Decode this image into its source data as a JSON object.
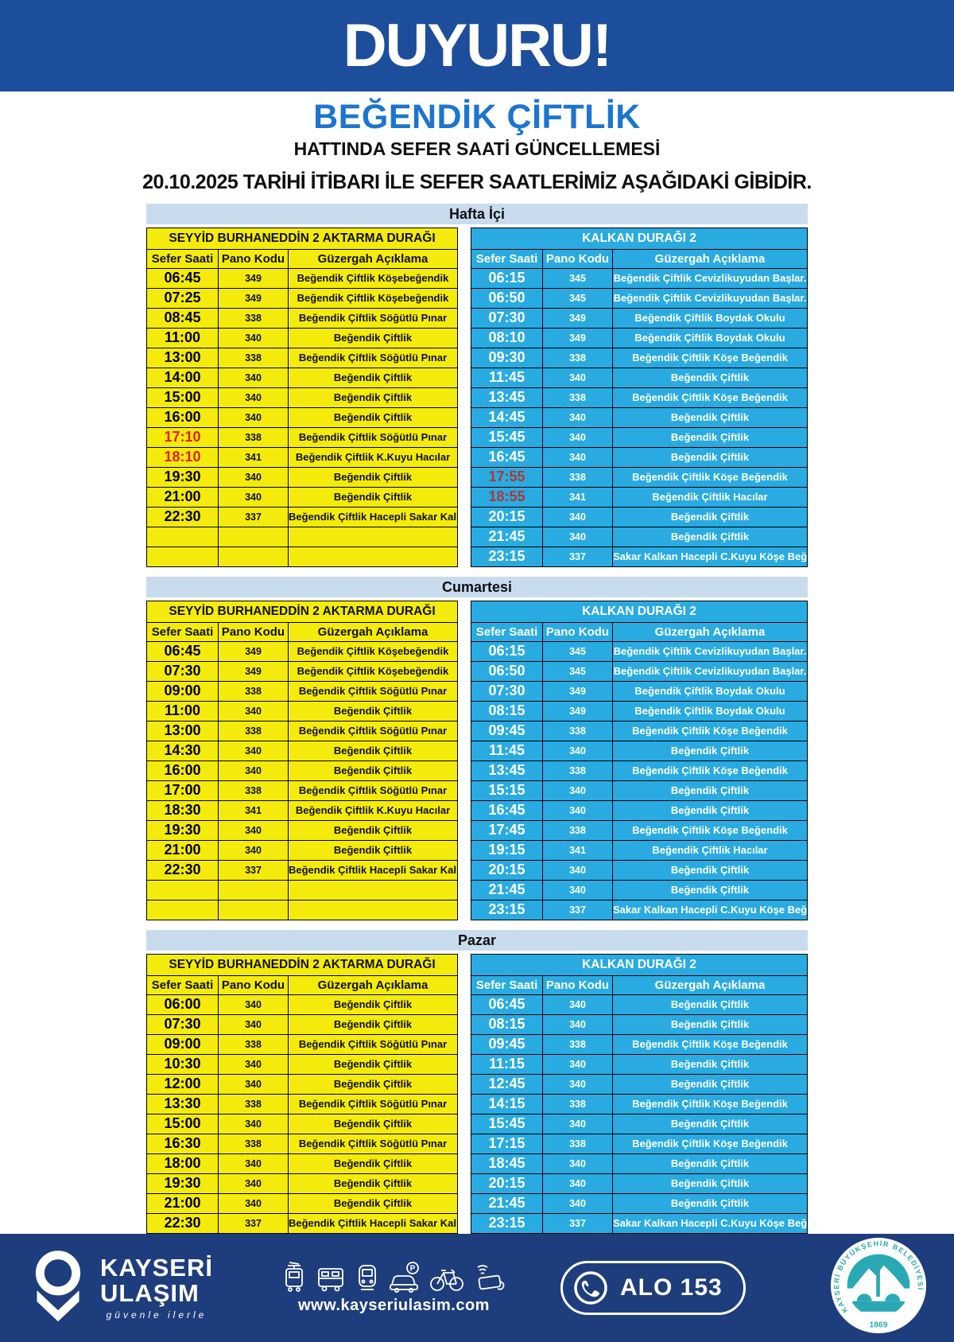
{
  "header": {
    "banner": "DUYURU!",
    "line_name": "BEĞENDİK ÇİFTLİK",
    "subtitle": "HATTINDA SEFER SAATİ GÜNCELLEMESİ",
    "date_line": "20.10.2025 TARİHİ İTİBARI İLE SEFER SAATLERİMİZ AŞAĞIDAKİ GİBİDİR."
  },
  "stops": {
    "left": "SEYYİD BURHANEDDİN 2 AKTARMA DURAĞI",
    "right": "KALKAN DURAĞI 2"
  },
  "columns": [
    "Sefer Saati",
    "Pano Kodu",
    "Güzergah Açıklama"
  ],
  "colors": {
    "banner_blue": "#1d4e9c",
    "line_name_blue": "#1c75cf",
    "day_band": "#c9dcee",
    "table_yellow": "#f4eb0c",
    "table_cyan": "#29abe2",
    "red_time_on_yellow": "#e02014",
    "red_time_on_blue": "#b5362c",
    "footer_navy": "#1e3d7c",
    "emblem_teal": "#2aa9b5"
  },
  "sections": [
    {
      "label": "Hafta İçi",
      "left_rows": [
        {
          "t": "06:45",
          "p": "349",
          "g": "Beğendik Çiftlik Köşebeğendik"
        },
        {
          "t": "07:25",
          "p": "349",
          "g": "Beğendik Çiftlik Köşebeğendik"
        },
        {
          "t": "08:45",
          "p": "338",
          "g": "Beğendik Çiftlik  Söğütlü Pınar"
        },
        {
          "t": "11:00",
          "p": "340",
          "g": "Beğendik Çiftlik"
        },
        {
          "t": "13:00",
          "p": "338",
          "g": "Beğendik Çiftlik  Söğütlü Pınar"
        },
        {
          "t": "14:00",
          "p": "340",
          "g": "Beğendik Çiftlik"
        },
        {
          "t": "15:00",
          "p": "340",
          "g": "Beğendik Çiftlik"
        },
        {
          "t": "16:00",
          "p": "340",
          "g": "Beğendik Çiftlik"
        },
        {
          "t": "17:10",
          "p": "338",
          "g": "Beğendik Çiftlik  Söğütlü Pınar",
          "red": true
        },
        {
          "t": "18:10",
          "p": "341",
          "g": "Beğendik Çiftlik K.Kuyu Hacılar",
          "red": true
        },
        {
          "t": "19:30",
          "p": "340",
          "g": "Beğendik Çiftlik"
        },
        {
          "t": "21:00",
          "p": "340",
          "g": "Beğendik Çiftlik"
        },
        {
          "t": "22:30",
          "p": "337",
          "g": "Beğendik Çiftlik Hacepli Sakar Kalkan"
        },
        {
          "t": "",
          "p": "",
          "g": ""
        },
        {
          "t": "",
          "p": "",
          "g": ""
        }
      ],
      "right_rows": [
        {
          "t": "06:15",
          "p": "345",
          "g": "Beğendik Çiftlik Cevizlikuyudan Başlar."
        },
        {
          "t": "06:50",
          "p": "345",
          "g": "Beğendik Çiftlik Cevizlikuyudan Başlar."
        },
        {
          "t": "07:30",
          "p": "349",
          "g": "Beğendik Çiftlik Boydak Okulu"
        },
        {
          "t": "08:10",
          "p": "349",
          "g": "Beğendik Çiftlik Boydak Okulu"
        },
        {
          "t": "09:30",
          "p": "338",
          "g": "Beğendik Çiftlik  Köşe Beğendik"
        },
        {
          "t": "11:45",
          "p": "340",
          "g": "Beğendik Çiftlik"
        },
        {
          "t": "13:45",
          "p": "338",
          "g": "Beğendik Çiftlik  Köşe Beğendik"
        },
        {
          "t": "14:45",
          "p": "340",
          "g": "Beğendik Çiftlik"
        },
        {
          "t": "15:45",
          "p": "340",
          "g": "Beğendik Çiftlik"
        },
        {
          "t": "16:45",
          "p": "340",
          "g": "Beğendik Çiftlik"
        },
        {
          "t": "17:55",
          "p": "338",
          "g": "Beğendik Çiftlik  Köşe Beğendik",
          "red": true
        },
        {
          "t": "18:55",
          "p": "341",
          "g": "Beğendik Çiftlik Hacılar",
          "red": true
        },
        {
          "t": "20:15",
          "p": "340",
          "g": "Beğendik Çiftlik"
        },
        {
          "t": "21:45",
          "p": "340",
          "g": "Beğendik Çiftlik"
        },
        {
          "t": "23:15",
          "p": "337",
          "g": "Sakar Kalkan Hacepli C.Kuyu Köşe Beğendik"
        }
      ]
    },
    {
      "label": "Cumartesi",
      "left_rows": [
        {
          "t": "06:45",
          "p": "349",
          "g": "Beğendik Çiftlik Köşebeğendik"
        },
        {
          "t": "07:30",
          "p": "349",
          "g": "Beğendik Çiftlik Köşebeğendik"
        },
        {
          "t": "09:00",
          "p": "338",
          "g": "Beğendik Çiftlik  Söğütlü Pınar"
        },
        {
          "t": "11:00",
          "p": "340",
          "g": "Beğendik Çiftlik"
        },
        {
          "t": "13:00",
          "p": "338",
          "g": "Beğendik Çiftlik  Söğütlü Pınar"
        },
        {
          "t": "14:30",
          "p": "340",
          "g": "Beğendik Çiftlik"
        },
        {
          "t": "16:00",
          "p": "340",
          "g": "Beğendik Çiftlik"
        },
        {
          "t": "17:00",
          "p": "338",
          "g": "Beğendik Çiftlik  Söğütlü Pınar"
        },
        {
          "t": "18:30",
          "p": "341",
          "g": "Beğendik Çiftlik K.Kuyu Hacılar"
        },
        {
          "t": "19:30",
          "p": "340",
          "g": "Beğendik Çiftlik"
        },
        {
          "t": "21:00",
          "p": "340",
          "g": "Beğendik Çiftlik"
        },
        {
          "t": "22:30",
          "p": "337",
          "g": "Beğendik Çiftlik Hacepli Sakar Kalkan"
        },
        {
          "t": "",
          "p": "",
          "g": ""
        },
        {
          "t": "",
          "p": "",
          "g": ""
        }
      ],
      "right_rows": [
        {
          "t": "06:15",
          "p": "345",
          "g": "Beğendik Çiftlik Cevizlikuyudan Başlar."
        },
        {
          "t": "06:50",
          "p": "345",
          "g": "Beğendik Çiftlik Cevizlikuyudan Başlar."
        },
        {
          "t": "07:30",
          "p": "349",
          "g": "Beğendik Çiftlik Boydak Okulu"
        },
        {
          "t": "08:15",
          "p": "349",
          "g": "Beğendik Çiftlik Boydak Okulu"
        },
        {
          "t": "09:45",
          "p": "338",
          "g": "Beğendik Çiftlik  Köşe Beğendik"
        },
        {
          "t": "11:45",
          "p": "340",
          "g": "Beğendik Çiftlik"
        },
        {
          "t": "13:45",
          "p": "338",
          "g": "Beğendik Çiftlik  Köşe Beğendik"
        },
        {
          "t": "15:15",
          "p": "340",
          "g": "Beğendik Çiftlik"
        },
        {
          "t": "16:45",
          "p": "340",
          "g": "Beğendik Çiftlik"
        },
        {
          "t": "17:45",
          "p": "338",
          "g": "Beğendik Çiftlik  Köşe Beğendik"
        },
        {
          "t": "19:15",
          "p": "341",
          "g": "Beğendik Çiftlik Hacılar"
        },
        {
          "t": "20:15",
          "p": "340",
          "g": "Beğendik Çiftlik"
        },
        {
          "t": "21:45",
          "p": "340",
          "g": "Beğendik Çiftlik"
        },
        {
          "t": "23:15",
          "p": "337",
          "g": "Sakar Kalkan Hacepli C.Kuyu Köşe Beğendik"
        }
      ]
    },
    {
      "label": "Pazar",
      "left_rows": [
        {
          "t": "06:00",
          "p": "340",
          "g": "Beğendik Çiftlik"
        },
        {
          "t": "07:30",
          "p": "340",
          "g": "Beğendik Çiftlik"
        },
        {
          "t": "09:00",
          "p": "338",
          "g": "Beğendik Çiftlik  Söğütlü Pınar"
        },
        {
          "t": "10:30",
          "p": "340",
          "g": "Beğendik Çiftlik"
        },
        {
          "t": "12:00",
          "p": "340",
          "g": "Beğendik Çiftlik"
        },
        {
          "t": "13:30",
          "p": "338",
          "g": "Beğendik Çiftlik  Söğütlü Pınar"
        },
        {
          "t": "15:00",
          "p": "340",
          "g": "Beğendik Çiftlik"
        },
        {
          "t": "16:30",
          "p": "338",
          "g": "Beğendik Çiftlik  Söğütlü Pınar"
        },
        {
          "t": "18:00",
          "p": "340",
          "g": "Beğendik Çiftlik"
        },
        {
          "t": "19:30",
          "p": "340",
          "g": "Beğendik Çiftlik"
        },
        {
          "t": "21:00",
          "p": "340",
          "g": "Beğendik Çiftlik"
        },
        {
          "t": "22:30",
          "p": "337",
          "g": "Beğendik Çiftlik Hacepli Sakar Kalkan"
        }
      ],
      "right_rows": [
        {
          "t": "06:45",
          "p": "340",
          "g": "Beğendik Çiftlik"
        },
        {
          "t": "08:15",
          "p": "340",
          "g": "Beğendik Çiftlik"
        },
        {
          "t": "09:45",
          "p": "338",
          "g": "Beğendik Çiftlik  Köşe Beğendik"
        },
        {
          "t": "11:15",
          "p": "340",
          "g": "Beğendik Çiftlik"
        },
        {
          "t": "12:45",
          "p": "340",
          "g": "Beğendik Çiftlik"
        },
        {
          "t": "14:15",
          "p": "338",
          "g": "Beğendik Çiftlik  Köşe Beğendik"
        },
        {
          "t": "15:45",
          "p": "340",
          "g": "Beğendik Çiftlik"
        },
        {
          "t": "17:15",
          "p": "338",
          "g": "Beğendik Çiftlik  Köşe Beğendik"
        },
        {
          "t": "18:45",
          "p": "340",
          "g": "Beğendik Çiftlik"
        },
        {
          "t": "20:15",
          "p": "340",
          "g": "Beğendik Çiftlik"
        },
        {
          "t": "21:45",
          "p": "340",
          "g": "Beğendik Çiftlik"
        },
        {
          "t": "23:15",
          "p": "337",
          "g": "Sakar Kalkan Hacepli C.Kuyu Köşe Beğendik"
        }
      ]
    }
  ],
  "footer": {
    "brand_line1": "KAYSERİ",
    "brand_line2": "ULAŞIM",
    "tagline": "güvenle ilerle",
    "website": "www.kayseriulasim.com",
    "phone_label": "ALO 153",
    "emblem_text": "KAYSERİ BÜYÜKŞEHİR BELEDİYESİ",
    "emblem_year": "1869",
    "transport_icons": [
      "tram",
      "bus",
      "metro",
      "car-parking",
      "bicycle",
      "contactless-card"
    ]
  }
}
